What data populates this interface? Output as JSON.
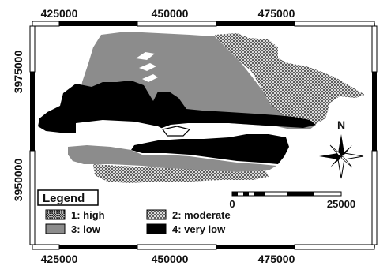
{
  "map": {
    "x_ticks": [
      "425000",
      "450000",
      "475000"
    ],
    "y_ticks": [
      "3975000",
      "3950000"
    ],
    "legend": {
      "title": "Legend",
      "items": [
        {
          "label": "1: high",
          "pattern": "crosshatch-fine"
        },
        {
          "label": "2: moderate",
          "pattern": "crosshatch"
        },
        {
          "label": "3: low",
          "pattern": "gray"
        },
        {
          "label": "4: very low",
          "pattern": "black"
        }
      ]
    },
    "north_arrow": {
      "label": "N"
    },
    "scale_bar": {
      "start": "0",
      "end": "25000"
    },
    "colors": {
      "low": "#8c8c8c",
      "very_low": "#000000",
      "moderate_hatch": "#555555",
      "background": "#ffffff"
    }
  }
}
